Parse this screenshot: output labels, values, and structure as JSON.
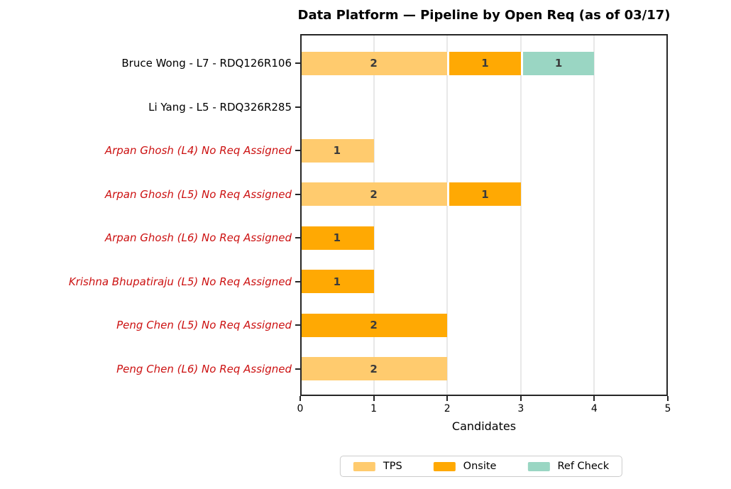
{
  "title": "Data Platform — Pipeline by Open Req (as of 03/17)",
  "chart_data": {
    "type": "bar",
    "orientation": "horizontal",
    "stacked": true,
    "title": "Data Platform — Pipeline by Open Req (as of 03/17)",
    "xlabel": "Candidates",
    "ylabel": "",
    "xlim": [
      0,
      5
    ],
    "xticks": [
      "0",
      "1",
      "2",
      "3",
      "4",
      "5"
    ],
    "grid": "vertical-light",
    "legend_position": "bottom-center",
    "categories": [
      {
        "label": "Bruce Wong - L7 - RDQ126R106",
        "style": "normal"
      },
      {
        "label": "Li Yang - L5 - RDQ326R285",
        "style": "normal"
      },
      {
        "label": "Arpan Ghosh (L4) No Req Assigned",
        "style": "alert"
      },
      {
        "label": "Arpan Ghosh (L5) No Req Assigned",
        "style": "alert"
      },
      {
        "label": "Arpan Ghosh (L6) No Req Assigned",
        "style": "alert"
      },
      {
        "label": "Krishna Bhupatiraju (L5) No Req Assigned",
        "style": "alert"
      },
      {
        "label": "Peng Chen (L5) No Req Assigned",
        "style": "alert"
      },
      {
        "label": "Peng Chen (L6) No Req Assigned",
        "style": "alert"
      }
    ],
    "series": [
      {
        "name": "TPS",
        "color": "#FFCB6E",
        "values": [
          2,
          0,
          1,
          2,
          0,
          0,
          0,
          2
        ]
      },
      {
        "name": "Onsite",
        "color": "#FFA903",
        "values": [
          1,
          0,
          0,
          1,
          1,
          1,
          2,
          0
        ]
      },
      {
        "name": "Ref Check",
        "color": "#9AD6C3",
        "values": [
          1,
          0,
          0,
          0,
          0,
          0,
          0,
          0
        ]
      }
    ],
    "totals_by_category": [
      4,
      0,
      1,
      3,
      1,
      1,
      2,
      2
    ]
  },
  "colors": {
    "normal_label": "#000000",
    "alert_label": "#CC1111",
    "bar_value_text": "#3B3B3B",
    "grid": "#E8E8E8",
    "axis_frame": "#262626",
    "legend_border": "#CCCCCC",
    "background": "#FFFFFF"
  }
}
